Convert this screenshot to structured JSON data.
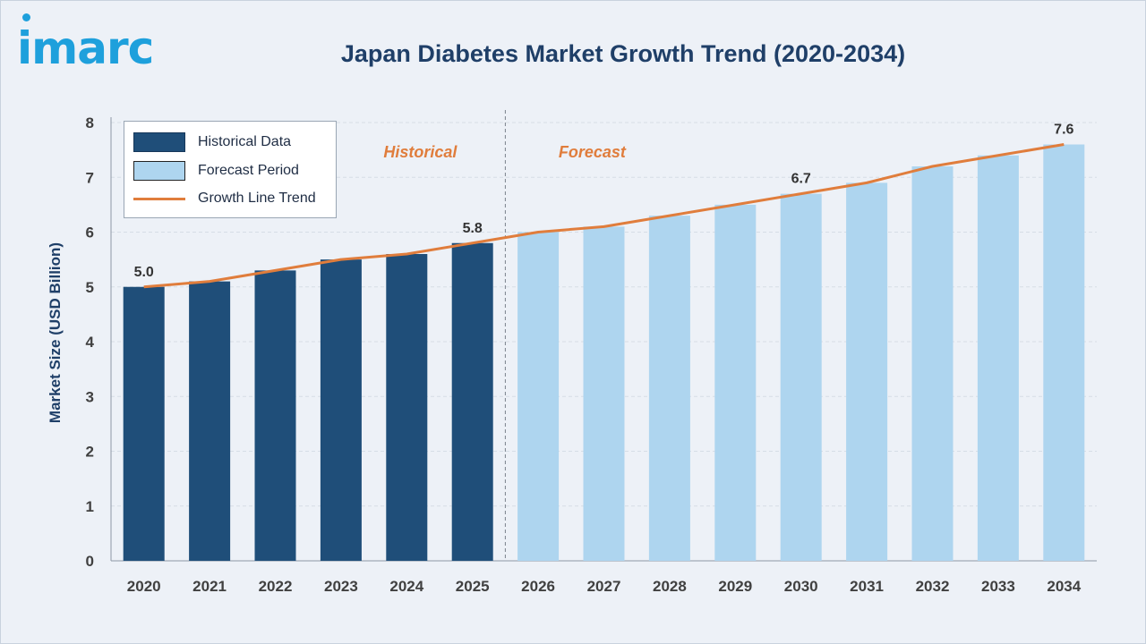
{
  "brand": {
    "logo_text": "imarc"
  },
  "colors": {
    "historical": "#1f4e79",
    "forecast": "#aed5ef",
    "trend": "#e07d3c",
    "title": "#1f3f68",
    "axis_text": "#404040",
    "logo": "#1ea0dc"
  },
  "chart_data": {
    "type": "bar",
    "title": "Japan Diabetes Market Growth Trend (2020-2034)",
    "xlabel": "",
    "ylabel": "Market Size (USD Billion)",
    "ylim": [
      0,
      8
    ],
    "yticks": [
      0,
      1,
      2,
      3,
      4,
      5,
      6,
      7,
      8
    ],
    "grid": true,
    "legend_position": "top-left",
    "categories": [
      "2020",
      "2021",
      "2022",
      "2023",
      "2024",
      "2025",
      "2026",
      "2027",
      "2028",
      "2029",
      "2030",
      "2031",
      "2032",
      "2033",
      "2034"
    ],
    "series": [
      {
        "name": "Historical Data",
        "type": "bar",
        "values": [
          5.0,
          5.1,
          5.3,
          5.5,
          5.6,
          5.8,
          null,
          null,
          null,
          null,
          null,
          null,
          null,
          null,
          null
        ]
      },
      {
        "name": "Forecast Period",
        "type": "bar",
        "values": [
          null,
          null,
          null,
          null,
          null,
          null,
          6.0,
          6.1,
          6.3,
          6.5,
          6.7,
          6.9,
          7.2,
          7.4,
          7.6
        ]
      },
      {
        "name": "Growth Line Trend",
        "type": "line",
        "values": [
          5.0,
          5.1,
          5.3,
          5.5,
          5.6,
          5.8,
          6.0,
          6.1,
          6.3,
          6.5,
          6.7,
          6.9,
          7.2,
          7.4,
          7.6
        ]
      }
    ],
    "data_labels": [
      {
        "category": "2020",
        "text": "5.0",
        "value": 5.0
      },
      {
        "category": "2025",
        "text": "5.8",
        "value": 5.8
      },
      {
        "category": "2030",
        "text": "6.7",
        "value": 6.7
      },
      {
        "category": "2034",
        "text": "7.6",
        "value": 7.6
      }
    ],
    "annotations": [
      {
        "text": "Historical",
        "period": "historical"
      },
      {
        "text": "Forecast",
        "period": "forecast"
      }
    ],
    "divider_between": [
      "2025",
      "2026"
    ]
  }
}
